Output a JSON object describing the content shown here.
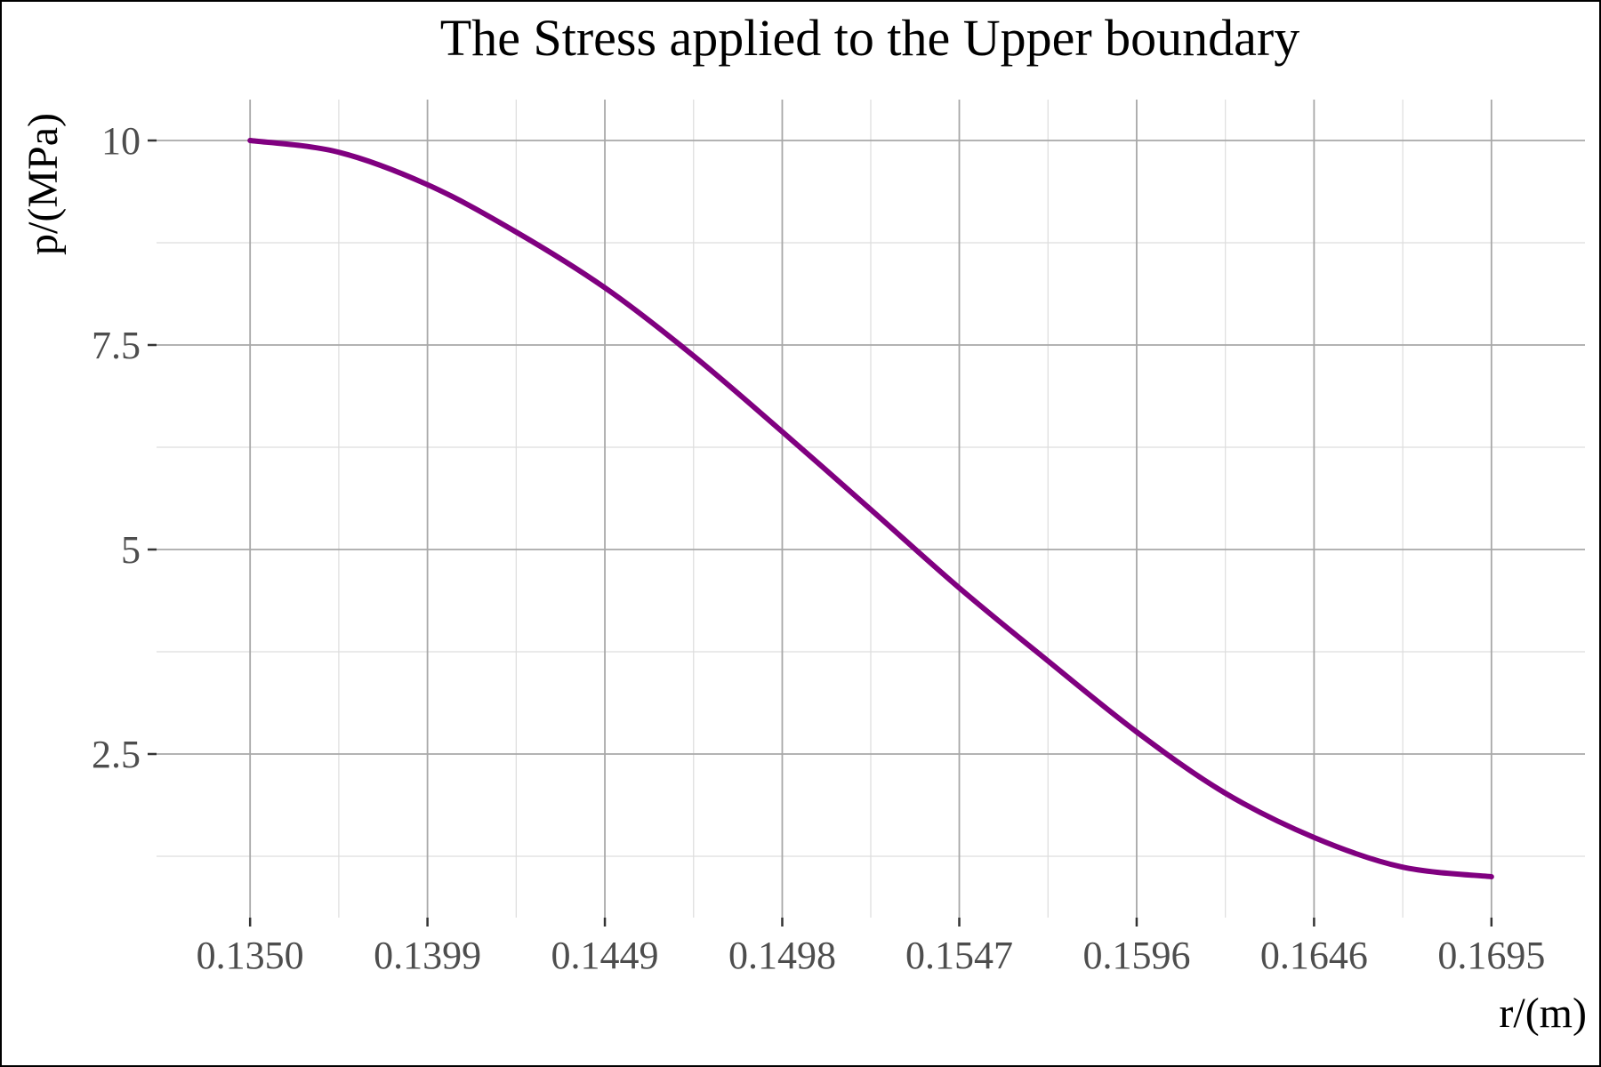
{
  "chart_data": {
    "type": "line",
    "title": "The Stress applied to the Upper boundary",
    "xlabel": "r/(m)",
    "ylabel": "p/(MPa)",
    "xlim": [
      0.1324,
      0.1721
    ],
    "ylim": [
      0.5,
      10.5
    ],
    "x_ticks": [
      0.135,
      0.13993,
      0.14486,
      0.14979,
      0.15471,
      0.15964,
      0.16457,
      0.1695
    ],
    "x_tick_labels": [
      "0.1350",
      "0.1399",
      "0.1449",
      "0.1498",
      "0.1547",
      "0.1596",
      "0.1646",
      "0.1695"
    ],
    "y_ticks": [
      2.5,
      5,
      7.5,
      10
    ],
    "y_tick_labels": [
      "2.5",
      "5",
      "7.5",
      "10"
    ],
    "grid": true,
    "series": [
      {
        "color": "#800080",
        "x": [
          0.135,
          0.13743,
          0.13993,
          0.14236,
          0.14486,
          0.14729,
          0.14979,
          0.15222,
          0.15471,
          0.15714,
          0.15964,
          0.16207,
          0.16457,
          0.167,
          0.1695
        ],
        "y": [
          10.0,
          9.86,
          9.46,
          8.89,
          8.2,
          7.38,
          6.44,
          5.5,
          4.53,
          3.65,
          2.77,
          2.03,
          1.48,
          1.12,
          1.0
        ]
      }
    ]
  }
}
